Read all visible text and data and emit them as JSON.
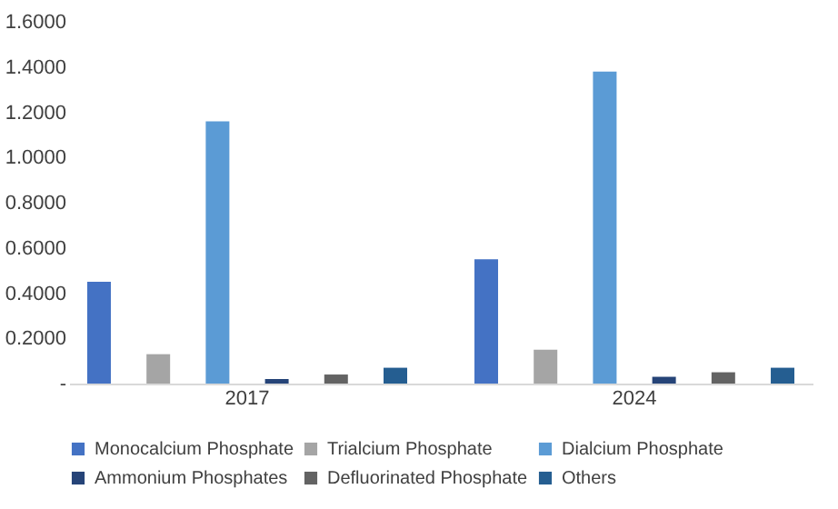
{
  "chart_data": {
    "type": "bar",
    "categories": [
      "2017",
      "2024"
    ],
    "series": [
      {
        "name": "Monocalcium Phosphate",
        "color": "#4472c4",
        "values": [
          0.45,
          0.55
        ]
      },
      {
        "name": "Trialcium Phosphate",
        "color": "#a5a5a5",
        "values": [
          0.13,
          0.15
        ]
      },
      {
        "name": "Dialcium Phosphate",
        "color": "#5b9bd5",
        "values": [
          1.16,
          1.38
        ]
      },
      {
        "name": "Ammonium Phosphates",
        "color": "#264478",
        "values": [
          0.02,
          0.03
        ]
      },
      {
        "name": "Defluorinated Phosphate",
        "color": "#636363",
        "values": [
          0.04,
          0.05
        ]
      },
      {
        "name": "Others",
        "color": "#255e91",
        "values": [
          0.07,
          0.07
        ]
      }
    ],
    "ylim": [
      0,
      1.6
    ],
    "yticks": [
      {
        "value": 0,
        "label": "-"
      },
      {
        "value": 0.2,
        "label": "0.2000"
      },
      {
        "value": 0.4,
        "label": "0.4000"
      },
      {
        "value": 0.6,
        "label": "0.6000"
      },
      {
        "value": 0.8,
        "label": "0.8000"
      },
      {
        "value": 1.0,
        "label": "1.0000"
      },
      {
        "value": 1.2,
        "label": "1.2000"
      },
      {
        "value": 1.4,
        "label": "1.4000"
      },
      {
        "value": 1.6,
        "label": "1.6000"
      }
    ],
    "grid": false,
    "legend": "bottom"
  }
}
